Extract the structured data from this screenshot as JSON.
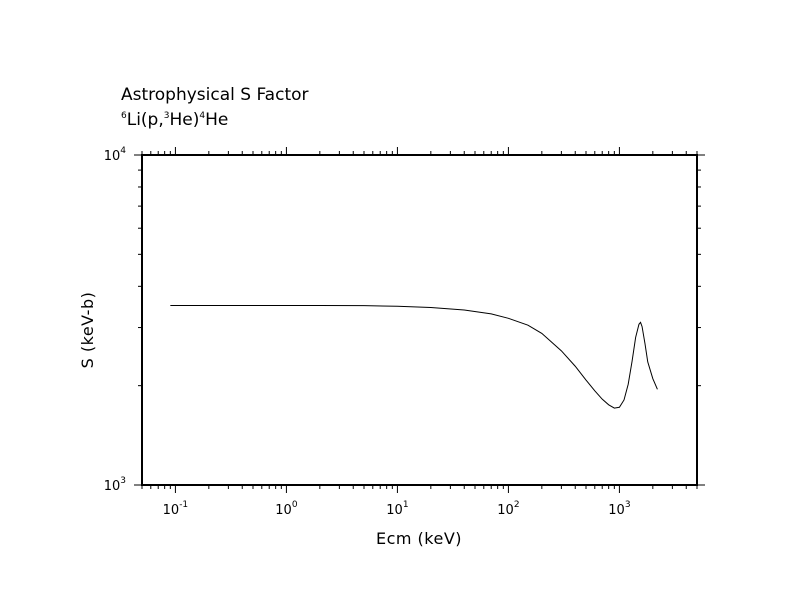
{
  "chart_data": {
    "type": "line",
    "title": "Astrophysical S Factor",
    "subtitle": {
      "parts": [
        {
          "text": "6",
          "sup": true
        },
        {
          "text": "Li(p,",
          "sup": false
        },
        {
          "text": "3",
          "sup": true
        },
        {
          "text": "He)",
          "sup": false
        },
        {
          "text": "4",
          "sup": true
        },
        {
          "text": "He",
          "sup": false
        }
      ]
    },
    "xlabel": "Ecm (keV)",
    "ylabel": "S (keV-b)",
    "xscale": "log",
    "yscale": "log",
    "xlim": [
      0.05,
      5000
    ],
    "ylim": [
      1000,
      10000
    ],
    "x_ticks": [
      {
        "base": "10",
        "exp": "-1"
      },
      {
        "base": "10",
        "exp": "0"
      },
      {
        "base": "10",
        "exp": "1"
      },
      {
        "base": "10",
        "exp": "2"
      },
      {
        "base": "10",
        "exp": "3"
      }
    ],
    "y_ticks": [
      {
        "base": "10",
        "exp": "3"
      },
      {
        "base": "10",
        "exp": "4"
      }
    ],
    "grid": false,
    "series": [
      {
        "color": "#000000",
        "x": [
          0.09,
          0.2,
          0.5,
          1,
          2,
          5,
          10,
          20,
          40,
          70,
          100,
          150,
          200,
          300,
          400,
          500,
          600,
          700,
          800,
          900,
          1000,
          1100,
          1200,
          1300,
          1400,
          1500,
          1550,
          1600,
          1700,
          1800,
          2000,
          2200
        ],
        "y": [
          3500,
          3500,
          3500,
          3500,
          3500,
          3495,
          3480,
          3450,
          3390,
          3300,
          3200,
          3050,
          2880,
          2550,
          2290,
          2080,
          1930,
          1820,
          1750,
          1710,
          1720,
          1810,
          2020,
          2370,
          2800,
          3070,
          3110,
          3020,
          2680,
          2360,
          2100,
          1950
        ]
      }
    ]
  }
}
